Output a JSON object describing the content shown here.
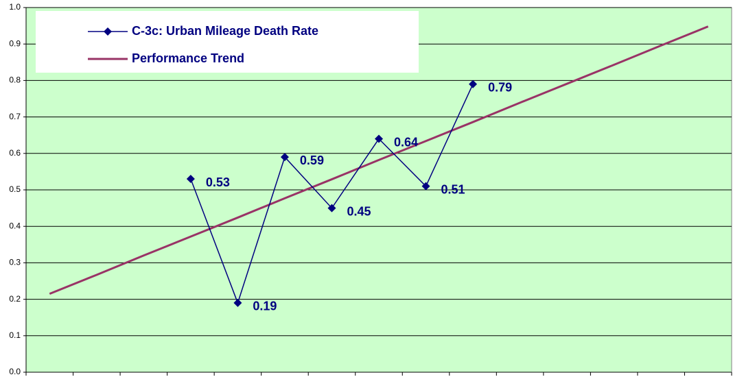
{
  "chart_data": {
    "type": "line",
    "categories": [
      null,
      null,
      null,
      null,
      null,
      null,
      null,
      null,
      null,
      null,
      null,
      null,
      null,
      null,
      null
    ],
    "series": [
      {
        "name": "C-3c: Urban Mileage Death Rate",
        "color": "#000080",
        "marker": "diamond",
        "data_labels": true,
        "values": [
          null,
          null,
          null,
          0.53,
          0.19,
          0.59,
          0.45,
          0.64,
          0.51,
          0.79,
          null,
          null,
          null,
          null,
          null
        ]
      },
      {
        "name": "Performance Trend",
        "color": "#993366",
        "values": [
          0.215,
          0.267,
          0.32,
          0.372,
          0.424,
          0.477,
          0.529,
          0.582,
          0.634,
          0.686,
          0.739,
          0.791,
          0.843,
          0.896,
          0.948
        ]
      }
    ],
    "ylim": [
      0,
      1.0
    ],
    "yticks": [
      {
        "value": 0,
        "label": "0.0"
      },
      0.1,
      0.2,
      0.3,
      0.4,
      0.5,
      0.6,
      0.7,
      0.8,
      0.9,
      {
        "value": 1.0,
        "label": "1.0"
      }
    ],
    "grid": true,
    "background": "#ccffcc",
    "legend": "top-left"
  }
}
